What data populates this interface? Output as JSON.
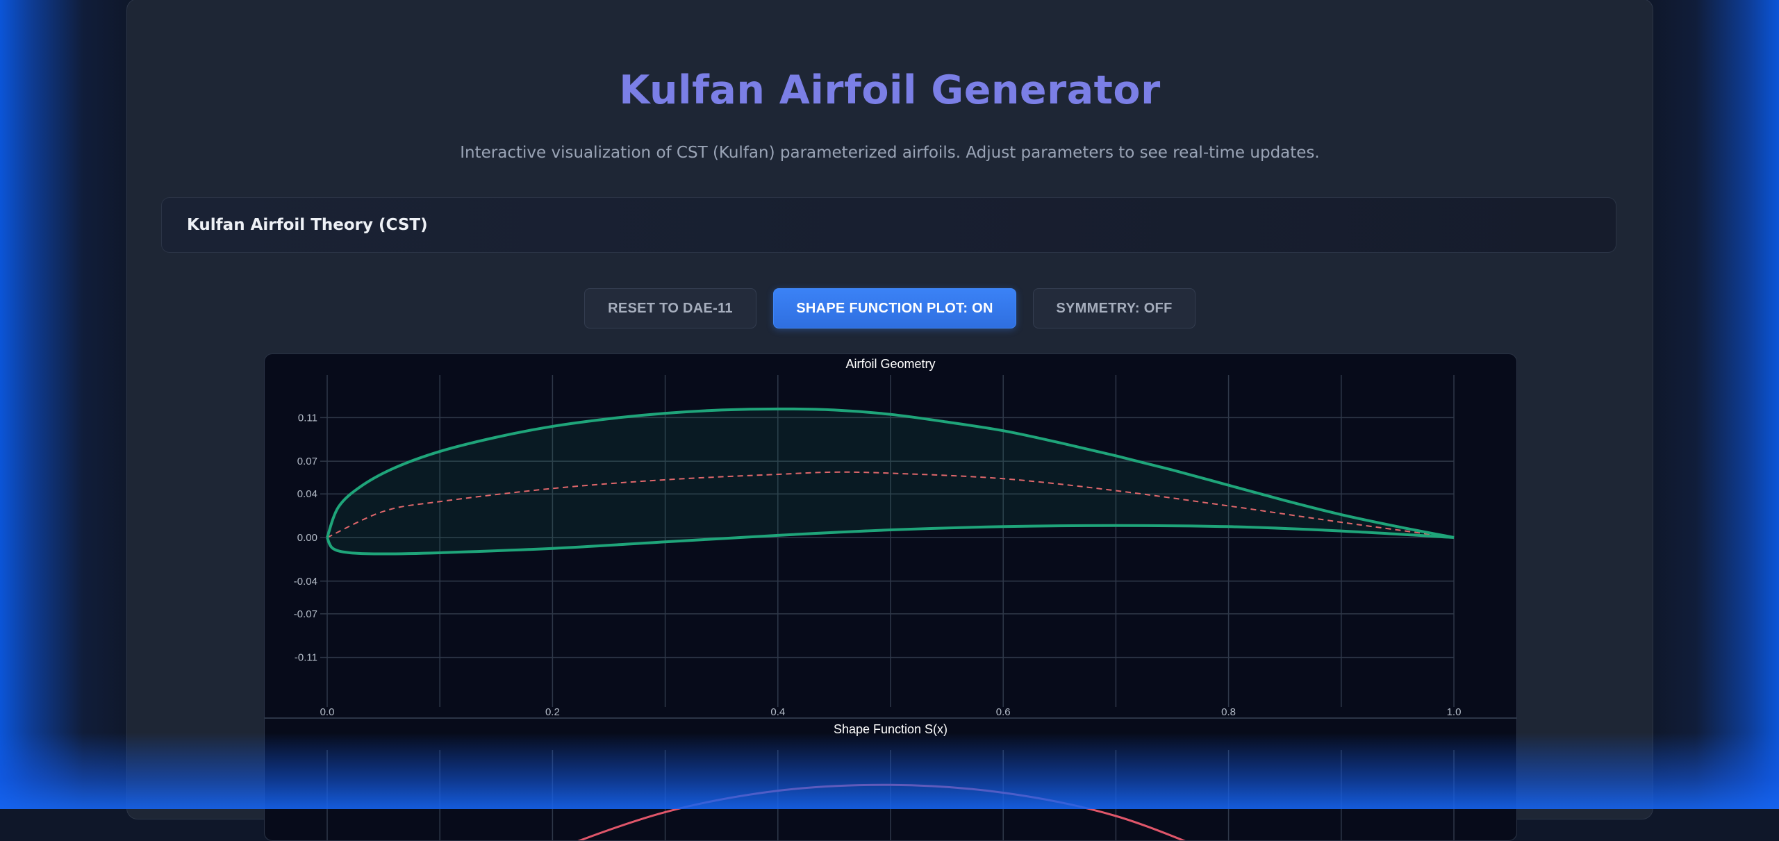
{
  "app": {
    "title": "Kulfan Airfoil Generator",
    "subtitle": "Interactive visualization of CST (Kulfan) parameterized airfoils. Adjust parameters to see real-time updates."
  },
  "theory_section": {
    "label": "Kulfan Airfoil Theory (CST)"
  },
  "controls": {
    "reset_label": "RESET TO DAE-11",
    "shape_plot_label": "SHAPE FUNCTION PLOT: ON",
    "symmetry_label": "SYMMETRY: OFF"
  },
  "colors": {
    "accent_title": "#7b7fe6",
    "primary_button": "#3b82f6",
    "airfoil_line": "#1fa57a",
    "camber_line": "#e0676b",
    "shape_function_line": "#e0566a"
  },
  "chart_data": [
    {
      "type": "line",
      "title": "Airfoil Geometry",
      "xlabel": "",
      "ylabel": "",
      "xlim": [
        0,
        1
      ],
      "ylim": [
        -0.13,
        0.13
      ],
      "x_ticks": [
        "0.0",
        "0.2",
        "0.4",
        "0.6",
        "0.8",
        "1.0"
      ],
      "y_ticks": [
        "0.11",
        "0.07",
        "0.04",
        "0.00",
        "-0.04",
        "-0.07",
        "-0.11"
      ],
      "grid": true,
      "series": [
        {
          "style": "solid",
          "role": "upper surface",
          "x": [
            0.0,
            0.01,
            0.03,
            0.06,
            0.1,
            0.15,
            0.2,
            0.25,
            0.3,
            0.35,
            0.4,
            0.45,
            0.5,
            0.55,
            0.6,
            0.65,
            0.7,
            0.75,
            0.8,
            0.85,
            0.9,
            0.95,
            1.0
          ],
          "y": [
            0.0,
            0.028,
            0.047,
            0.064,
            0.079,
            0.092,
            0.102,
            0.109,
            0.114,
            0.117,
            0.118,
            0.117,
            0.113,
            0.106,
            0.098,
            0.087,
            0.075,
            0.062,
            0.048,
            0.034,
            0.021,
            0.01,
            0.0
          ]
        },
        {
          "style": "solid",
          "role": "lower surface",
          "x": [
            0.0,
            0.005,
            0.02,
            0.05,
            0.1,
            0.2,
            0.3,
            0.4,
            0.5,
            0.6,
            0.7,
            0.8,
            0.9,
            1.0
          ],
          "y": [
            0.0,
            -0.01,
            -0.014,
            -0.015,
            -0.014,
            -0.01,
            -0.004,
            0.002,
            0.007,
            0.01,
            0.011,
            0.01,
            0.006,
            0.0
          ]
        },
        {
          "style": "dashed",
          "role": "camber line",
          "x": [
            0.0,
            0.05,
            0.1,
            0.2,
            0.3,
            0.4,
            0.45,
            0.5,
            0.6,
            0.7,
            0.8,
            0.9,
            1.0
          ],
          "y": [
            0.0,
            0.024,
            0.033,
            0.045,
            0.053,
            0.058,
            0.06,
            0.059,
            0.054,
            0.043,
            0.029,
            0.014,
            0.0
          ]
        }
      ]
    },
    {
      "type": "line",
      "title": "Shape Function S(x)",
      "xlabel": "",
      "ylabel": "",
      "xlim": [
        0,
        1
      ],
      "grid": true,
      "series": [
        {
          "style": "solid",
          "x": [
            0.14,
            0.2,
            0.3,
            0.4,
            0.5,
            0.6,
            0.7,
            0.8,
            0.84
          ],
          "y": [
            0.0,
            0.16,
            0.36,
            0.47,
            0.5,
            0.46,
            0.34,
            0.12,
            0.03
          ]
        }
      ]
    }
  ]
}
